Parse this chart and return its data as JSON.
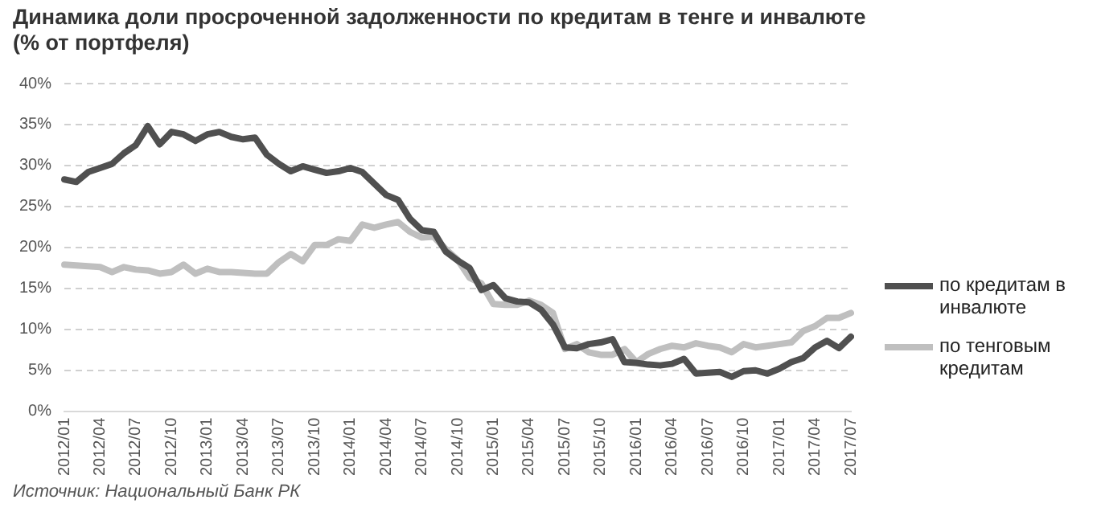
{
  "chart_data": {
    "type": "line",
    "title": "Динамика доли просроченной задолженности по кредитам в тенге и инвалюте",
    "subtitle": "(% от портфеля)",
    "categories": [
      "2012/01",
      null,
      null,
      "2012/04",
      null,
      null,
      "2012/07",
      null,
      null,
      "2012/10",
      null,
      null,
      "2013/01",
      null,
      null,
      "2013/04",
      null,
      null,
      "2013/07",
      null,
      null,
      "2013/10",
      null,
      null,
      "2014/01",
      null,
      null,
      "2014/04",
      null,
      null,
      "2014/07",
      null,
      null,
      "2014/10",
      null,
      null,
      "2015/01",
      null,
      null,
      "2015/04",
      null,
      null,
      "2015/07",
      null,
      null,
      "2015/10",
      null,
      null,
      "2016/01",
      null,
      null,
      "2016/04",
      null,
      null,
      "2016/07",
      null,
      null,
      "2016/10",
      null,
      null,
      "2017/01",
      null,
      null,
      "2017/04",
      null,
      null,
      "2017/07"
    ],
    "series": [
      {
        "name": "по кредитам в инвалюте",
        "color": "#505050",
        "values": [
          28.3,
          28.0,
          29.2,
          29.7,
          30.2,
          31.5,
          32.5,
          34.8,
          32.6,
          34.1,
          33.8,
          33.0,
          33.8,
          34.1,
          33.5,
          33.2,
          33.4,
          31.3,
          30.2,
          29.3,
          29.9,
          29.5,
          29.1,
          29.3,
          29.7,
          29.2,
          27.8,
          26.4,
          25.8,
          23.5,
          22.1,
          21.9,
          19.5,
          18.4,
          17.5,
          14.8,
          15.4,
          13.8,
          13.4,
          13.3,
          12.4,
          10.6,
          7.8,
          7.7,
          8.2,
          8.4,
          8.8,
          6.0,
          5.9,
          5.7,
          5.6,
          5.8,
          6.4,
          4.6,
          4.7,
          4.8,
          4.2,
          4.9,
          5.0,
          4.6,
          5.2,
          6.0,
          6.5,
          7.8,
          8.6,
          7.7,
          9.1
        ]
      },
      {
        "name": "по тенговым кредитам",
        "color": "#bfbfbf",
        "values": [
          17.9,
          17.8,
          17.7,
          17.6,
          17.0,
          17.6,
          17.3,
          17.2,
          16.8,
          17.0,
          17.9,
          16.8,
          17.4,
          17.0,
          17.0,
          16.9,
          16.8,
          16.8,
          18.2,
          19.2,
          18.3,
          20.3,
          20.3,
          21.0,
          20.8,
          22.8,
          22.4,
          22.8,
          23.1,
          21.9,
          21.2,
          21.3,
          19.8,
          18.5,
          16.3,
          15.6,
          13.1,
          13.0,
          13.0,
          13.5,
          13.0,
          12.0,
          7.6,
          8.2,
          7.2,
          6.9,
          6.9,
          7.6,
          6.0,
          7.0,
          7.6,
          8.0,
          7.8,
          8.3,
          8.0,
          7.8,
          7.2,
          8.2,
          7.8,
          8.0,
          8.2,
          8.4,
          9.8,
          10.4,
          11.4,
          11.4,
          12.0
        ]
      }
    ],
    "ylim": [
      0,
      40
    ],
    "yticks": [
      {
        "value": 0,
        "label": "0%"
      },
      {
        "value": 5,
        "label": "5%"
      },
      {
        "value": 10,
        "label": "10%"
      },
      {
        "value": 15,
        "label": "15%"
      },
      {
        "value": 20,
        "label": "20%"
      },
      {
        "value": 25,
        "label": "25%"
      },
      {
        "value": 30,
        "label": "30%"
      },
      {
        "value": 35,
        "label": "35%"
      },
      {
        "value": 40,
        "label": "40%"
      }
    ],
    "grid": "y",
    "legend": "right",
    "marker": "none",
    "line_style": "solid",
    "annotations": [
      "Источник:  Национальный Банк РК"
    ]
  }
}
